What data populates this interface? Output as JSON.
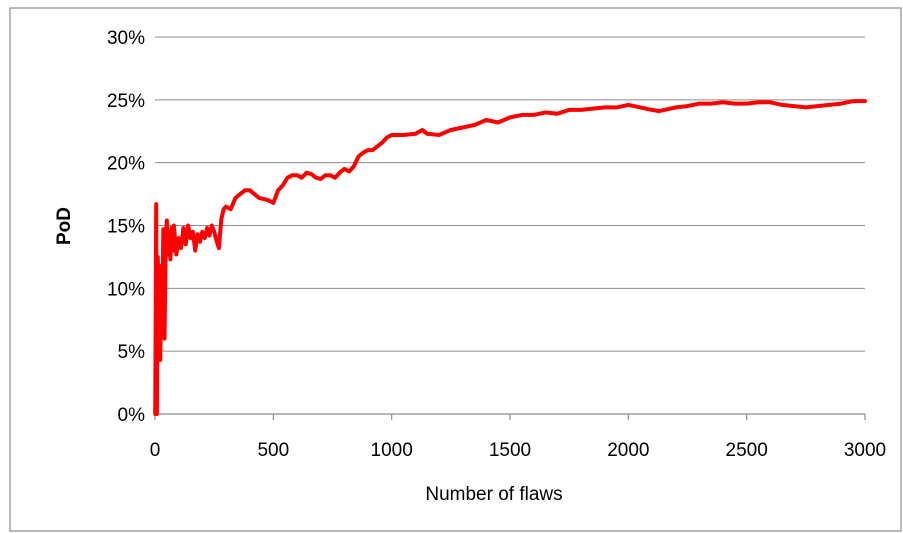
{
  "chart_data": {
    "type": "line",
    "title": "",
    "xlabel": "Number of flaws",
    "ylabel": "PoD",
    "xlim": [
      0,
      3000
    ],
    "ylim": [
      0,
      0.3
    ],
    "x_ticks": [
      0,
      500,
      1000,
      1500,
      2000,
      2500,
      3000
    ],
    "x_tick_labels": [
      "0",
      "500",
      "1000",
      "1500",
      "2000",
      "2500",
      "3000"
    ],
    "y_ticks": [
      0,
      0.05,
      0.1,
      0.15,
      0.2,
      0.25,
      0.3
    ],
    "y_tick_labels": [
      "0%",
      "5%",
      "10%",
      "15%",
      "20%",
      "25%",
      "30%"
    ],
    "grid": "horizontal",
    "legend": "none",
    "series": [
      {
        "color": "#ff0000",
        "x": [
          1,
          5,
          8,
          12,
          15,
          18,
          22,
          25,
          30,
          35,
          40,
          45,
          50,
          55,
          60,
          65,
          70,
          75,
          80,
          90,
          100,
          110,
          120,
          130,
          140,
          150,
          160,
          170,
          180,
          190,
          200,
          210,
          220,
          230,
          240,
          250,
          260,
          270,
          280,
          290,
          300,
          320,
          340,
          360,
          380,
          400,
          420,
          440,
          460,
          480,
          500,
          520,
          540,
          560,
          580,
          600,
          620,
          640,
          660,
          680,
          700,
          720,
          740,
          760,
          780,
          800,
          820,
          840,
          860,
          880,
          900,
          920,
          940,
          960,
          980,
          1000,
          1050,
          1100,
          1130,
          1150,
          1200,
          1250,
          1300,
          1350,
          1400,
          1450,
          1500,
          1550,
          1600,
          1650,
          1700,
          1750,
          1800,
          1850,
          1900,
          1950,
          2000,
          2050,
          2100,
          2130,
          2200,
          2250,
          2300,
          2350,
          2400,
          2450,
          2500,
          2550,
          2600,
          2650,
          2700,
          2750,
          2800,
          2850,
          2900,
          2950,
          3000
        ],
        "y": [
          0.0,
          0.167,
          0.0,
          0.125,
          0.067,
          0.118,
          0.043,
          0.08,
          0.067,
          0.147,
          0.06,
          0.133,
          0.154,
          0.127,
          0.145,
          0.123,
          0.148,
          0.13,
          0.15,
          0.127,
          0.14,
          0.132,
          0.148,
          0.135,
          0.15,
          0.14,
          0.145,
          0.13,
          0.143,
          0.137,
          0.145,
          0.14,
          0.148,
          0.142,
          0.15,
          0.145,
          0.138,
          0.132,
          0.155,
          0.163,
          0.165,
          0.163,
          0.172,
          0.175,
          0.178,
          0.178,
          0.175,
          0.172,
          0.171,
          0.17,
          0.168,
          0.178,
          0.182,
          0.188,
          0.19,
          0.19,
          0.188,
          0.192,
          0.191,
          0.188,
          0.187,
          0.19,
          0.19,
          0.188,
          0.192,
          0.195,
          0.193,
          0.197,
          0.205,
          0.208,
          0.21,
          0.21,
          0.213,
          0.216,
          0.22,
          0.222,
          0.222,
          0.223,
          0.226,
          0.223,
          0.222,
          0.226,
          0.228,
          0.23,
          0.234,
          0.232,
          0.236,
          0.238,
          0.238,
          0.24,
          0.239,
          0.242,
          0.242,
          0.243,
          0.244,
          0.244,
          0.246,
          0.244,
          0.242,
          0.241,
          0.244,
          0.245,
          0.247,
          0.247,
          0.248,
          0.247,
          0.247,
          0.248,
          0.248,
          0.246,
          0.245,
          0.244,
          0.245,
          0.246,
          0.247,
          0.249,
          0.249
        ]
      }
    ]
  }
}
